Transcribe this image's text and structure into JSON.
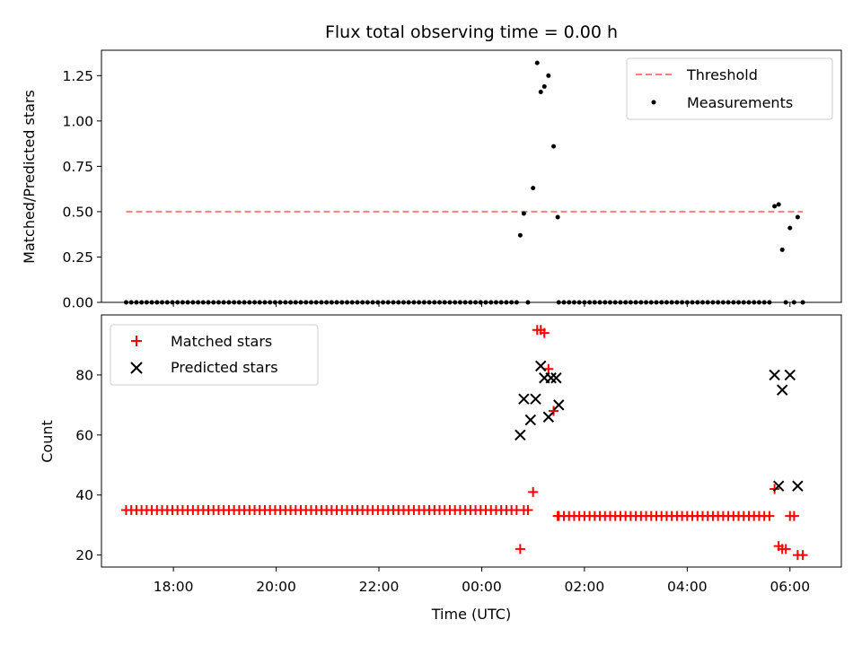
{
  "chart_data": [
    {
      "type": "scatter",
      "title": "Flux total observing time = 0.00 h",
      "xlabel": "",
      "ylabel": "Matched/Predicted stars",
      "xlim": [
        16.6,
        31.0
      ],
      "ylim": [
        0,
        1.39
      ],
      "yticks": [
        0,
        0.25,
        0.5,
        0.75,
        1.0,
        1.25
      ],
      "ytick_labels": [
        "0.00",
        "0.25",
        "0.50",
        "0.75",
        "1.00",
        "1.25"
      ],
      "legend_position": "upper right",
      "grid": false,
      "series": [
        {
          "name": "Threshold",
          "kind": "line",
          "style": "dashed",
          "color": "#ff7f7f",
          "x": [
            17.08,
            30.25
          ],
          "y": [
            0.5,
            0.5
          ]
        },
        {
          "name": "Measurements",
          "kind": "scatter",
          "marker": "dot",
          "color": "#000000",
          "x_zero_range": {
            "start": 17.08,
            "end": 24.72,
            "step": 0.1
          },
          "x_zero_range2": {
            "start": 25.5,
            "end": 29.65,
            "step": 0.1
          },
          "points": [
            {
              "x": 24.75,
              "y": 0.37
            },
            {
              "x": 24.82,
              "y": 0.49
            },
            {
              "x": 24.9,
              "y": 0.0
            },
            {
              "x": 25.0,
              "y": 0.63
            },
            {
              "x": 25.08,
              "y": 1.32
            },
            {
              "x": 25.15,
              "y": 1.16
            },
            {
              "x": 25.22,
              "y": 1.19
            },
            {
              "x": 25.3,
              "y": 1.25
            },
            {
              "x": 25.4,
              "y": 0.86
            },
            {
              "x": 25.48,
              "y": 0.47
            },
            {
              "x": 29.7,
              "y": 0.53
            },
            {
              "x": 29.78,
              "y": 0.54
            },
            {
              "x": 29.85,
              "y": 0.29
            },
            {
              "x": 29.92,
              "y": 0.0
            },
            {
              "x": 30.0,
              "y": 0.41
            },
            {
              "x": 30.08,
              "y": 0.0
            },
            {
              "x": 30.15,
              "y": 0.47
            },
            {
              "x": 30.25,
              "y": 0.0
            }
          ]
        }
      ]
    },
    {
      "type": "scatter",
      "title": "",
      "xlabel": "Time (UTC)",
      "ylabel": "Count",
      "xlim": [
        16.6,
        31.0
      ],
      "ylim": [
        16,
        100
      ],
      "xticks": [
        18,
        20,
        22,
        24,
        26,
        28,
        30
      ],
      "xtick_labels": [
        "18:00",
        "20:00",
        "22:00",
        "00:00",
        "02:00",
        "04:00",
        "06:00"
      ],
      "yticks": [
        20,
        40,
        60,
        80
      ],
      "ytick_labels": [
        "20",
        "40",
        "60",
        "80"
      ],
      "legend_position": "upper left",
      "grid": false,
      "series": [
        {
          "name": "Matched stars",
          "marker": "plus",
          "color": "#ff0000",
          "constant_runs": [
            {
              "start": 17.08,
              "end": 24.72,
              "step": 0.1,
              "value": 35
            },
            {
              "start": 25.5,
              "end": 29.65,
              "step": 0.1,
              "value": 33
            }
          ],
          "points": [
            {
              "x": 24.75,
              "y": 22
            },
            {
              "x": 24.82,
              "y": 35
            },
            {
              "x": 24.9,
              "y": 35
            },
            {
              "x": 25.0,
              "y": 41
            },
            {
              "x": 25.08,
              "y": 95
            },
            {
              "x": 25.15,
              "y": 95
            },
            {
              "x": 25.22,
              "y": 94
            },
            {
              "x": 25.3,
              "y": 82
            },
            {
              "x": 25.4,
              "y": 68
            },
            {
              "x": 25.48,
              "y": 33
            },
            {
              "x": 29.7,
              "y": 42
            },
            {
              "x": 29.78,
              "y": 23
            },
            {
              "x": 29.85,
              "y": 22
            },
            {
              "x": 29.92,
              "y": 22
            },
            {
              "x": 30.0,
              "y": 33
            },
            {
              "x": 30.08,
              "y": 33
            },
            {
              "x": 30.15,
              "y": 20
            },
            {
              "x": 30.25,
              "y": 20
            }
          ]
        },
        {
          "name": "Predicted stars",
          "marker": "x",
          "color": "#000000",
          "points": [
            {
              "x": 24.75,
              "y": 60
            },
            {
              "x": 24.82,
              "y": 72
            },
            {
              "x": 24.95,
              "y": 65
            },
            {
              "x": 25.05,
              "y": 72
            },
            {
              "x": 25.15,
              "y": 83
            },
            {
              "x": 25.22,
              "y": 79
            },
            {
              "x": 25.3,
              "y": 66
            },
            {
              "x": 25.35,
              "y": 79
            },
            {
              "x": 25.45,
              "y": 79
            },
            {
              "x": 25.5,
              "y": 70
            },
            {
              "x": 29.7,
              "y": 80
            },
            {
              "x": 29.78,
              "y": 43
            },
            {
              "x": 29.85,
              "y": 75
            },
            {
              "x": 30.0,
              "y": 80
            },
            {
              "x": 30.15,
              "y": 43
            }
          ]
        }
      ]
    }
  ]
}
